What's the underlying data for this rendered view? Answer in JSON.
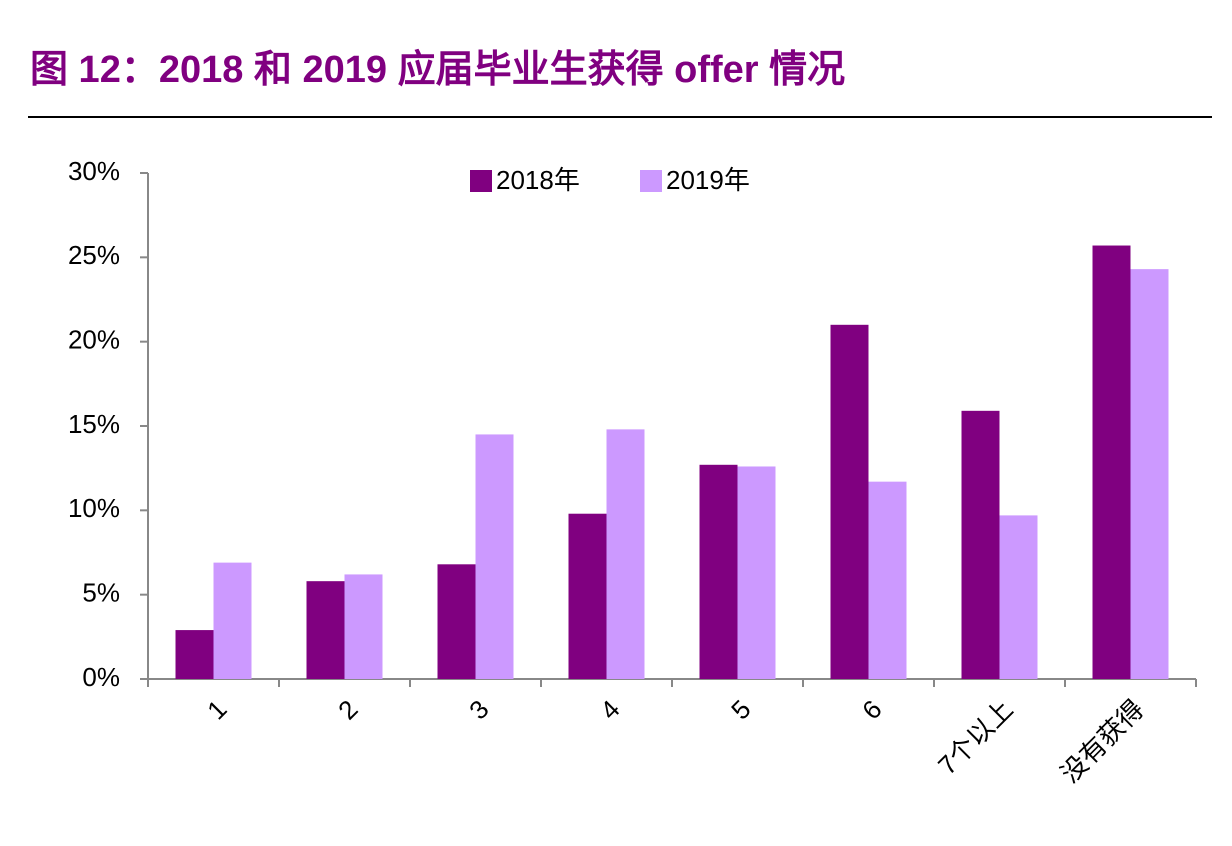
{
  "chart_data": {
    "type": "bar",
    "title": "图 12：2018 和 2019 应届毕业生获得 offer 情况",
    "categories": [
      "1",
      "2",
      "3",
      "4",
      "5",
      "6",
      "7个以上",
      "没有获得"
    ],
    "series": [
      {
        "name": "2018年",
        "color": "#800080",
        "values": [
          2.9,
          5.8,
          6.8,
          9.8,
          12.7,
          21.0,
          15.9,
          25.7
        ]
      },
      {
        "name": "2019年",
        "color": "#cc99ff",
        "values": [
          6.9,
          6.2,
          14.5,
          14.8,
          12.6,
          11.7,
          9.7,
          24.3
        ]
      }
    ],
    "ylim": [
      0,
      30
    ],
    "yticks": [
      {
        "value": 0,
        "label": "0%"
      },
      {
        "value": 5,
        "label": "5%"
      },
      {
        "value": 10,
        "label": "10%"
      },
      {
        "value": 15,
        "label": "15%"
      },
      {
        "value": 20,
        "label": "20%"
      },
      {
        "value": 25,
        "label": "25%"
      },
      {
        "value": 30,
        "label": "30%"
      }
    ],
    "legend": "top",
    "grid": false
  }
}
